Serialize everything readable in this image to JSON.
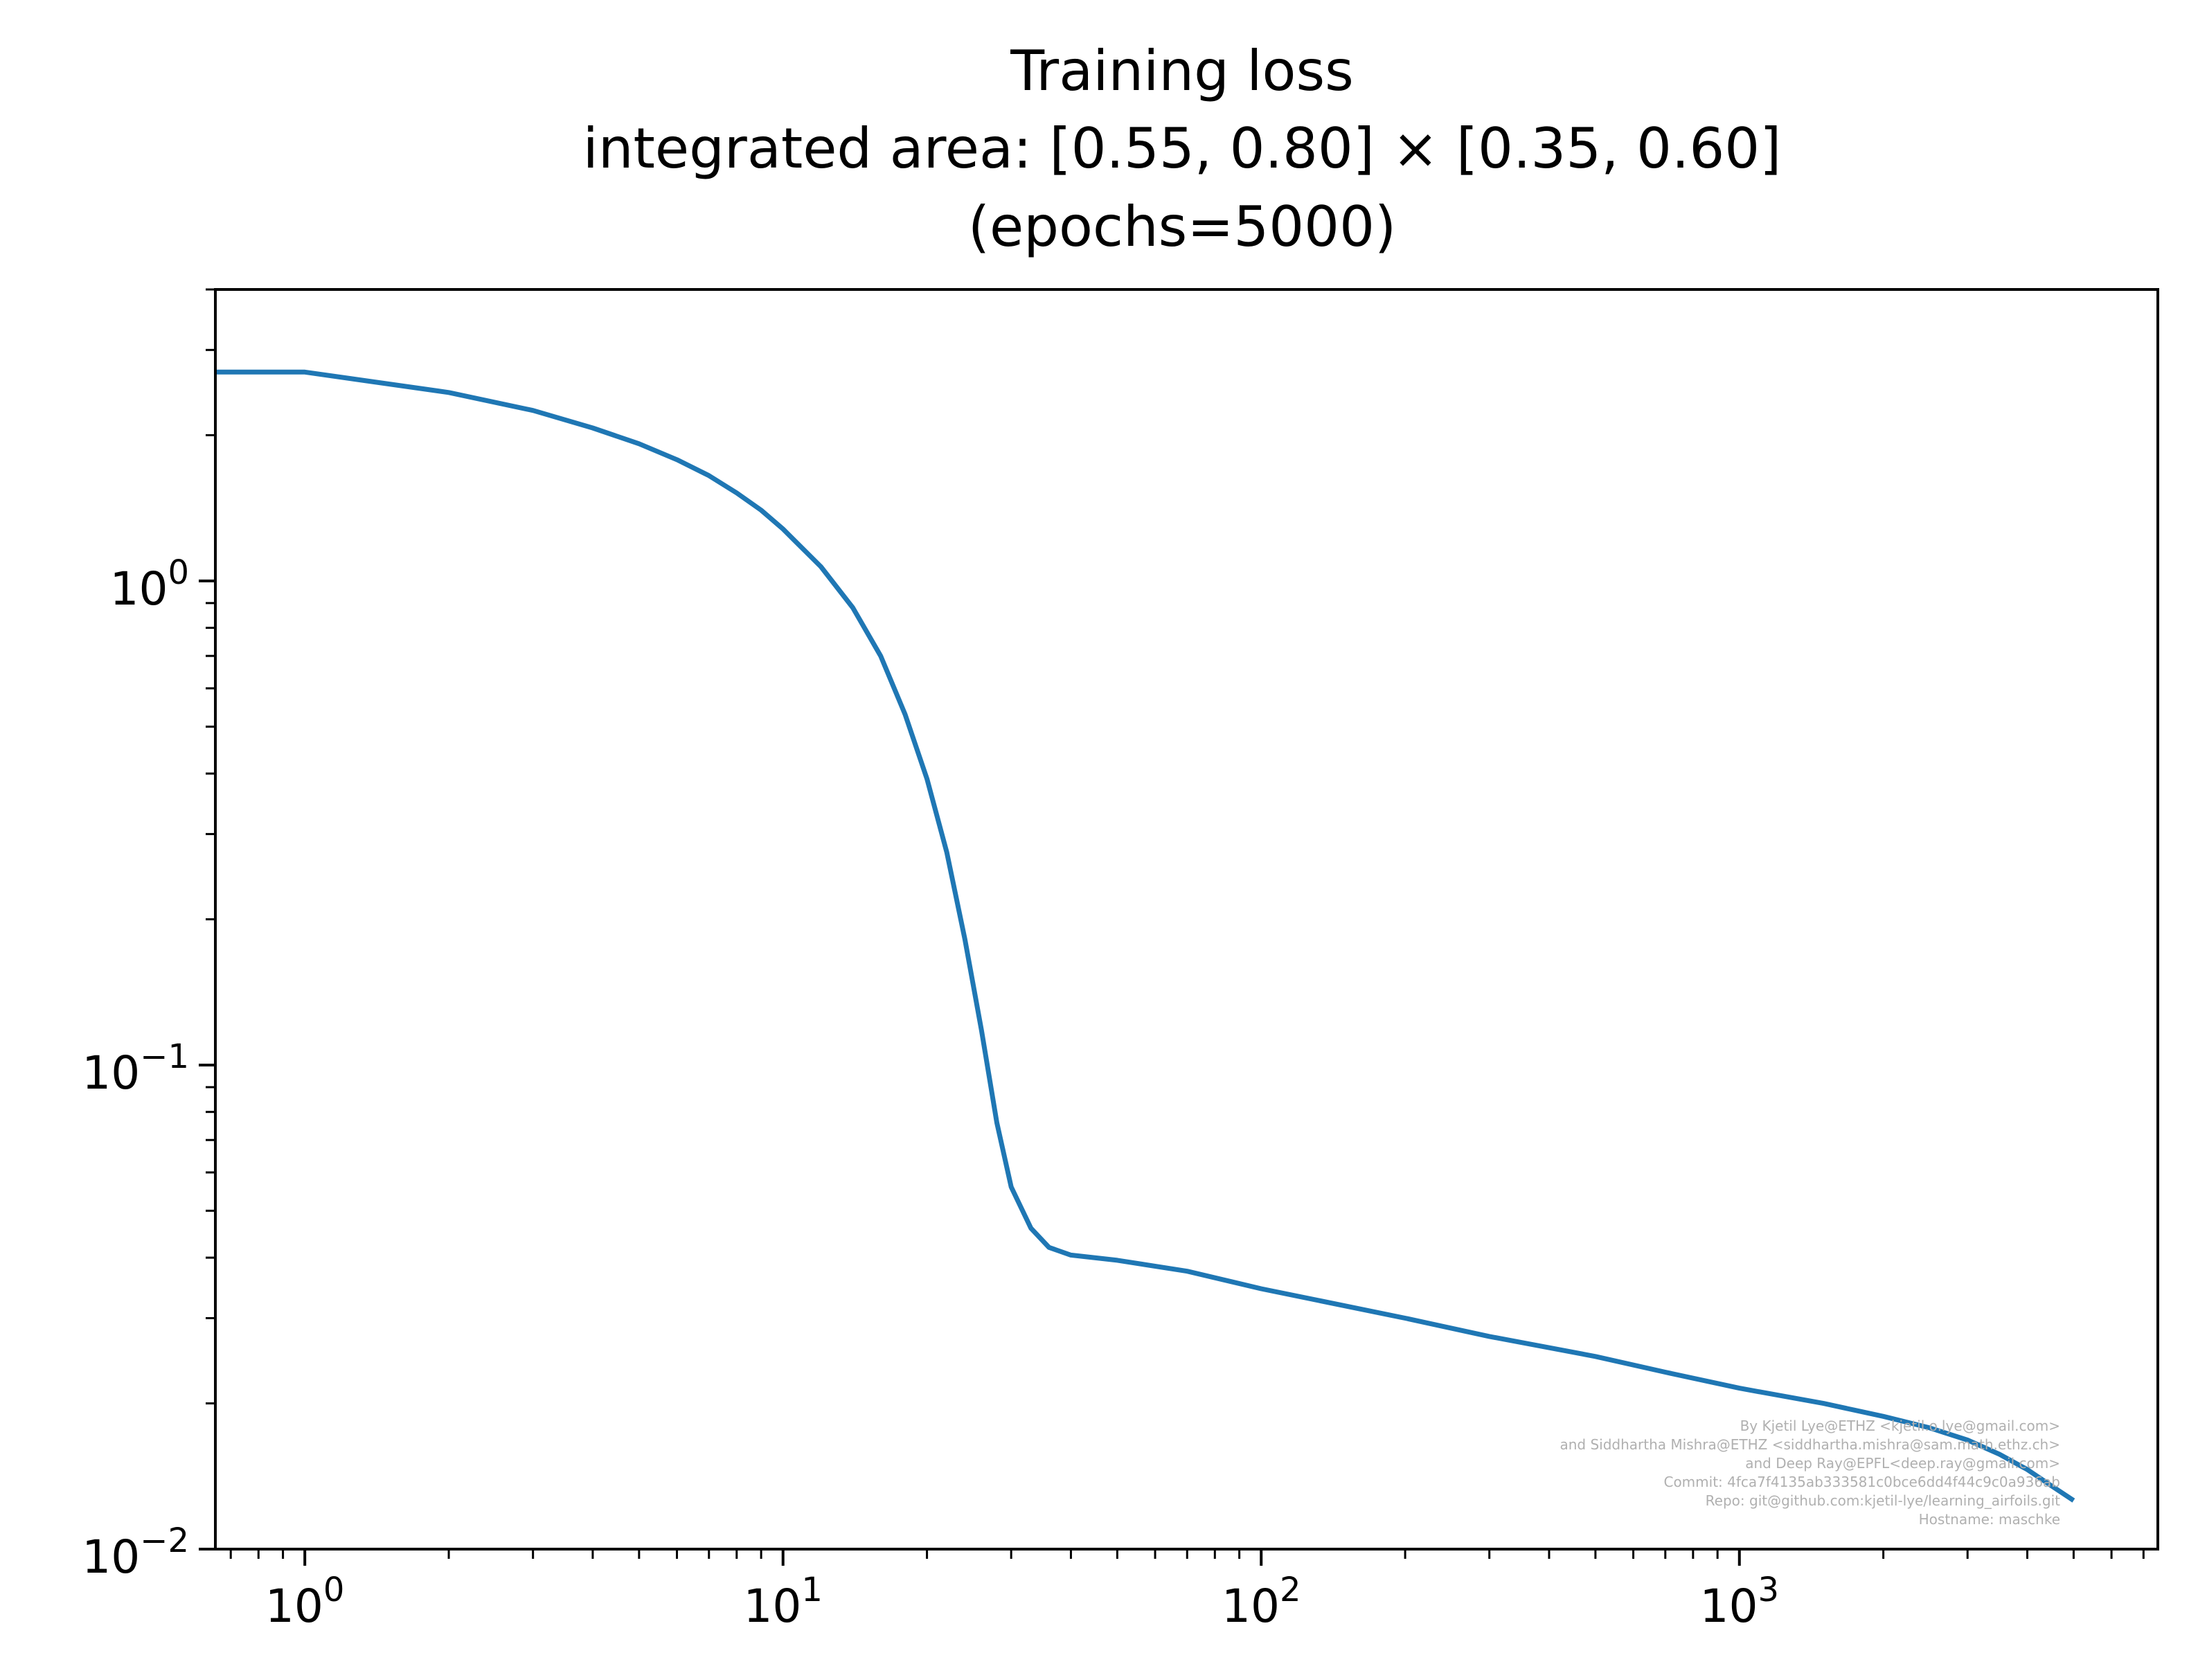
{
  "chart_data": {
    "type": "line",
    "title_lines": [
      "Training loss",
      "integrated area: [0.55, 0.80] × [0.35, 0.60]",
      "(epochs=5000)"
    ],
    "xlabel": "",
    "ylabel": "",
    "xscale": "log",
    "yscale": "log",
    "xlim": [
      0.65,
      7500
    ],
    "ylim": [
      0.01,
      4.0
    ],
    "grid": false,
    "x_ticks": [
      {
        "value": 1,
        "base": "10",
        "exp": "0"
      },
      {
        "value": 10,
        "base": "10",
        "exp": "1"
      },
      {
        "value": 100,
        "base": "10",
        "exp": "2"
      },
      {
        "value": 1000,
        "base": "10",
        "exp": "3"
      }
    ],
    "y_ticks": [
      {
        "value": 1,
        "base": "10",
        "exp": "0"
      },
      {
        "value": 0.1,
        "base": "10",
        "exp": "−1"
      },
      {
        "value": 0.01,
        "base": "10",
        "exp": "−2"
      }
    ],
    "series": [
      {
        "color": "#1f77b4",
        "points": [
          [
            0.65,
            2.7
          ],
          [
            1,
            2.7
          ],
          [
            2,
            2.45
          ],
          [
            3,
            2.25
          ],
          [
            4,
            2.07
          ],
          [
            5,
            1.92
          ],
          [
            6,
            1.78
          ],
          [
            7,
            1.65
          ],
          [
            8,
            1.52
          ],
          [
            9,
            1.4
          ],
          [
            10,
            1.28
          ],
          [
            12,
            1.07
          ],
          [
            14,
            0.88
          ],
          [
            16,
            0.7
          ],
          [
            18,
            0.53
          ],
          [
            20,
            0.39
          ],
          [
            22,
            0.275
          ],
          [
            24,
            0.182
          ],
          [
            26,
            0.118
          ],
          [
            28,
            0.076
          ],
          [
            30,
            0.056
          ],
          [
            33,
            0.046
          ],
          [
            36,
            0.042
          ],
          [
            40,
            0.0405
          ],
          [
            50,
            0.0395
          ],
          [
            70,
            0.0375
          ],
          [
            100,
            0.0345
          ],
          [
            200,
            0.03
          ],
          [
            300,
            0.0275
          ],
          [
            500,
            0.025
          ],
          [
            700,
            0.0232
          ],
          [
            1000,
            0.0215
          ],
          [
            1500,
            0.02
          ],
          [
            2000,
            0.0188
          ],
          [
            2500,
            0.0178
          ],
          [
            3000,
            0.0168
          ],
          [
            3500,
            0.0157
          ],
          [
            4000,
            0.0146
          ],
          [
            4500,
            0.0135
          ],
          [
            5000,
            0.0126
          ]
        ]
      }
    ]
  },
  "footer_lines": [
    "By Kjetil Lye@ETHZ <kjetil.o.lye@gmail.com>",
    "and Siddhartha Mishra@ETHZ <siddhartha.mishra@sam.math.ethz.ch>",
    "and Deep Ray@EPFL<deep.ray@gmail.com>",
    "Commit: 4fca7f4135ab333581c0bce6dd4f44c9c0a936ab",
    "Repo: git@github.com:kjetil-lye/learning_airfoils.git",
    "Hostname: maschke"
  ],
  "colors": {
    "line": "#1f77b4",
    "axes": "#000000",
    "footer": "#b0b0b0",
    "background": "#ffffff"
  }
}
